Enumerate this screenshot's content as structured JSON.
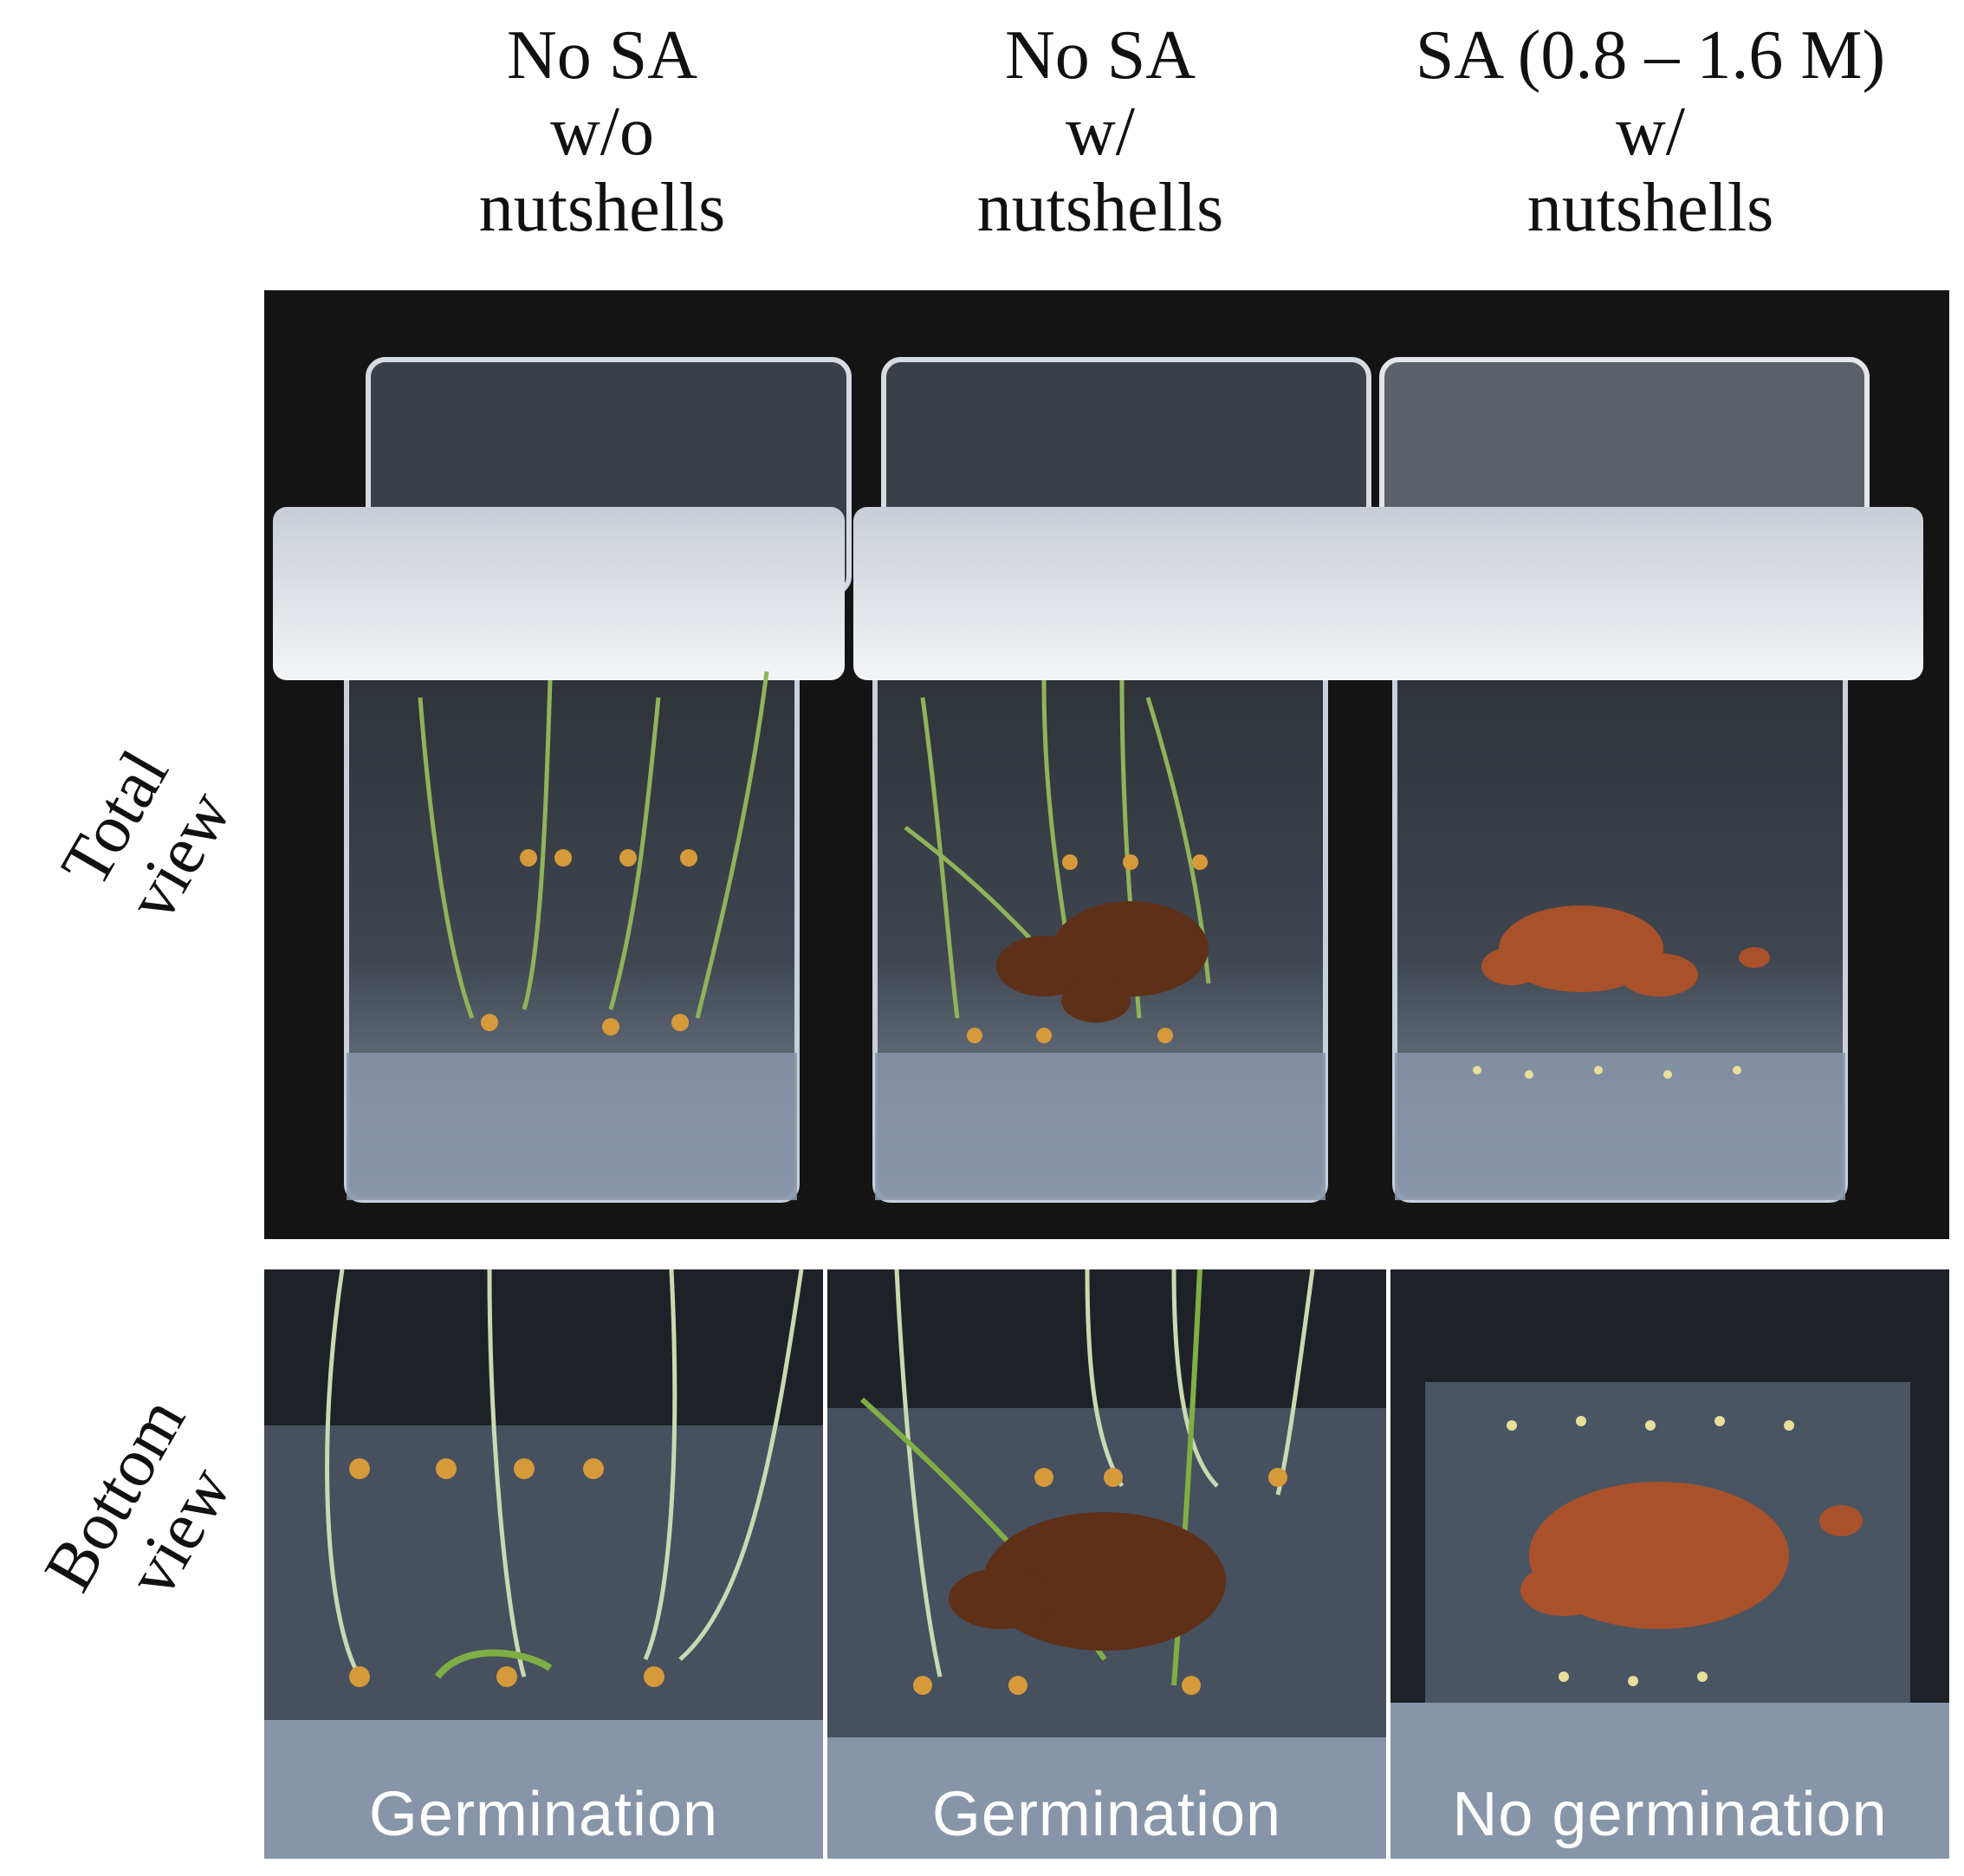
{
  "columns": [
    {
      "line1": "No SA",
      "line2": "w/o",
      "line3": "nutshells"
    },
    {
      "line1": "No SA",
      "line2": "w/",
      "line3": "nutshells"
    },
    {
      "line1": "SA (0.8 – 1.6 M)",
      "line2": "w/",
      "line3": "nutshells"
    }
  ],
  "rows": [
    {
      "line1": "Total",
      "line2": "view"
    },
    {
      "line1": "Bottom",
      "line2": "view"
    }
  ],
  "captions": [
    "Germination",
    "Germination",
    "No germination"
  ],
  "colors": {
    "background": "#141414",
    "container": "#b9c3cf",
    "lid": "#eef1f4",
    "water": "#8795a8",
    "seedling": "#7fae45",
    "nutshell": "#8a4a26"
  }
}
